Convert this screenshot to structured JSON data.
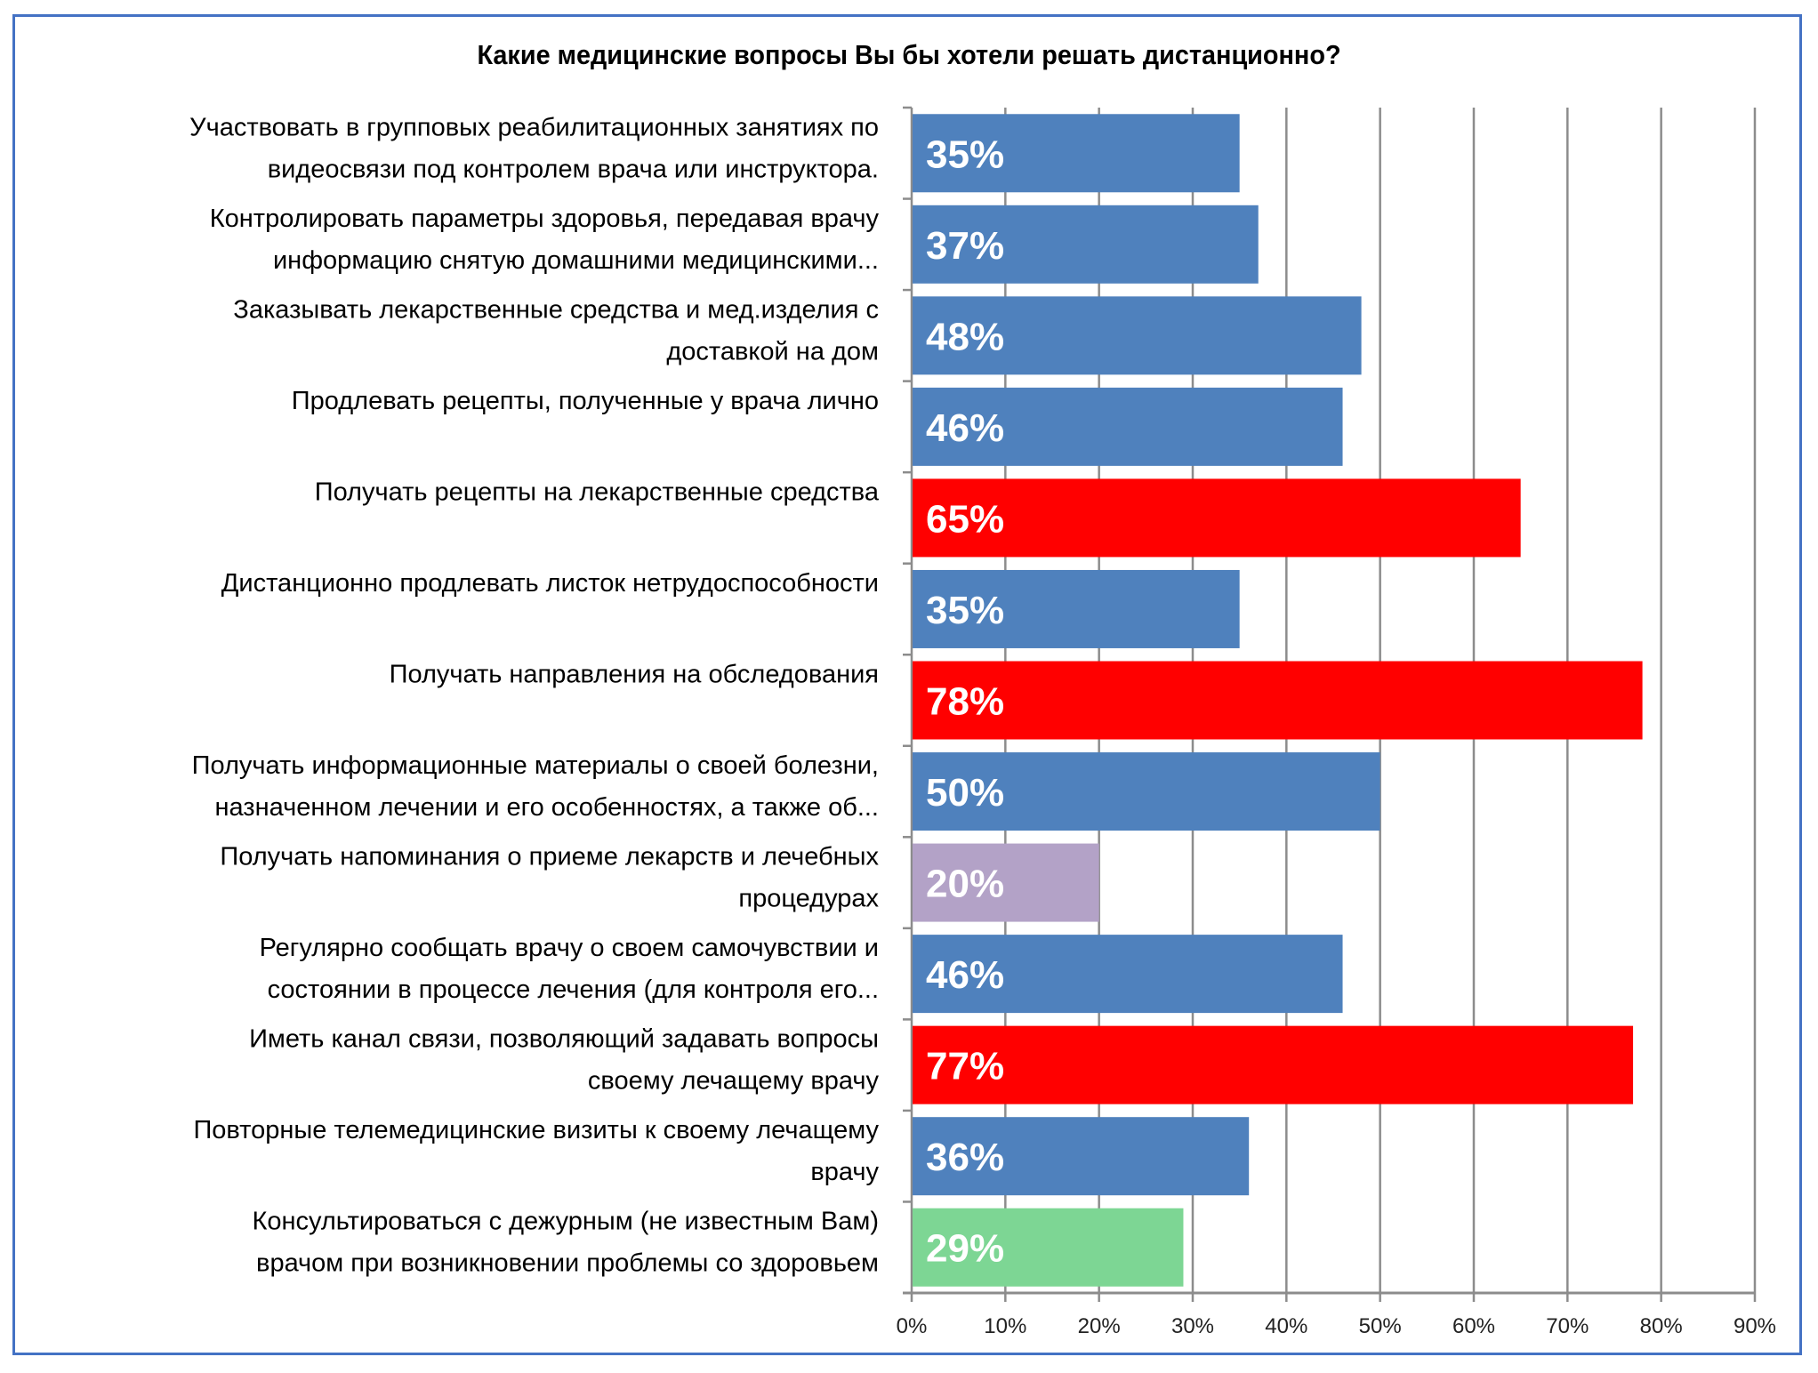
{
  "chart_data": {
    "type": "bar",
    "orientation": "horizontal",
    "title": "Какие медицинские вопросы Вы бы хотели решать дистанционно?",
    "categories": [
      [
        "Участвовать в групповых реабилитационных занятиях по",
        "видеосвязи под контролем врача или инструктора."
      ],
      [
        "Контролировать параметры здоровья, передавая врачу",
        "информацию снятую домашними медицинскими..."
      ],
      [
        "Заказывать лекарственные средства и мед.изделия  с",
        "доставкой на дом"
      ],
      [
        "Продлевать рецепты, полученные у врача лично"
      ],
      [
        "Получать рецепты на лекарственные средства"
      ],
      [
        "Дистанционно продлевать листок нетрудоспособности"
      ],
      [
        "Получать направления на обследования"
      ],
      [
        "Получать информационные материалы о своей болезни,",
        "назначенном лечении и его особенностях, а также об..."
      ],
      [
        "Получать напоминания о приеме лекарств и лечебных",
        "процедурах"
      ],
      [
        "Регулярно сообщать врачу о своем самочувствии и",
        "состоянии в процессе лечения (для контроля его..."
      ],
      [
        "Иметь канал связи, позволяющий задавать вопросы",
        "своему лечащему врачу"
      ],
      [
        "Повторные телемедицинские визиты к своему лечащему",
        "врачу"
      ],
      [
        "Консультироваться с дежурным (не известным Вам)",
        "врачом при возникновении проблемы со здоровьем"
      ]
    ],
    "values": [
      35,
      37,
      48,
      46,
      65,
      35,
      78,
      50,
      20,
      46,
      77,
      36,
      29
    ],
    "value_labels": [
      "35%",
      "37%",
      "48%",
      "46%",
      "65%",
      "35%",
      "78%",
      "50%",
      "20%",
      "46%",
      "77%",
      "36%",
      "29%"
    ],
    "bar_colors": [
      "#4F81BD",
      "#4F81BD",
      "#4F81BD",
      "#4F81BD",
      "#FF0000",
      "#4F81BD",
      "#FF0000",
      "#4F81BD",
      "#B3A2C7",
      "#4F81BD",
      "#FF0000",
      "#4F81BD",
      "#7DD694"
    ],
    "xlim": [
      0,
      90
    ],
    "xticks": [
      "0%",
      "10%",
      "20%",
      "30%",
      "40%",
      "50%",
      "60%",
      "70%",
      "80%",
      "90%"
    ],
    "grid": true,
    "xlabel": "",
    "ylabel": ""
  }
}
